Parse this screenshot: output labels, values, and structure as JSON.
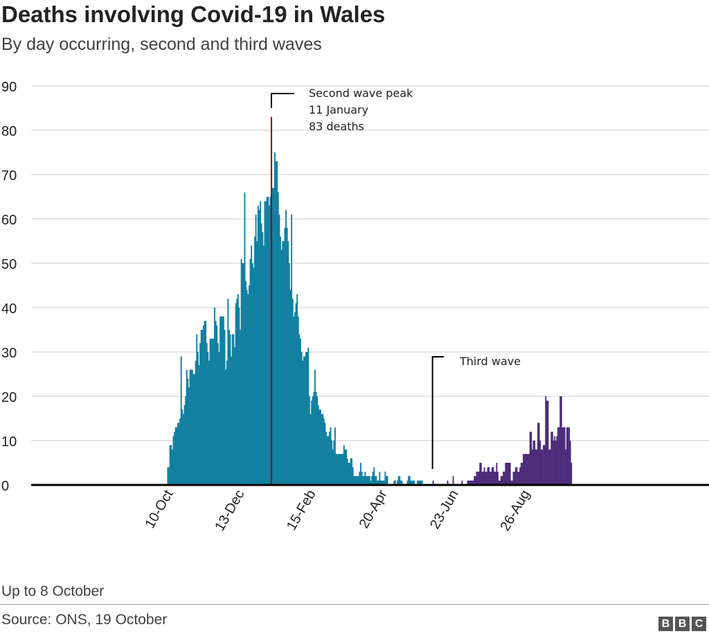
{
  "chart_data": {
    "type": "bar",
    "title": "Deaths involving Covid-19 in Wales",
    "subtitle": "By day occurring, second and third waves",
    "xlabel": "",
    "ylabel": "",
    "ylim": [
      0,
      90
    ],
    "yticks": [
      0,
      10,
      20,
      30,
      40,
      50,
      60,
      70,
      80,
      90
    ],
    "xlim": [
      "2020-06-10",
      "2022-02-08"
    ],
    "xticks": [
      {
        "date": "2020-10-10",
        "label": "10-Oct"
      },
      {
        "date": "2020-12-13",
        "label": "13-Dec"
      },
      {
        "date": "2021-02-15",
        "label": "15-Feb"
      },
      {
        "date": "2021-04-20",
        "label": "20-Apr"
      },
      {
        "date": "2021-06-23",
        "label": "23-Jun"
      },
      {
        "date": "2021-08-26",
        "label": "26-Aug"
      }
    ],
    "grid": true,
    "frequency": "daily",
    "series": [
      {
        "color": "#1380A1",
        "start": "2020-10-10",
        "end": "2021-06-04",
        "values": [
          4,
          4,
          9,
          9,
          8,
          11,
          12,
          13,
          13,
          14,
          14,
          15,
          29,
          17,
          16,
          18,
          20,
          26,
          24,
          22,
          26,
          26,
          26,
          25,
          25,
          28,
          34,
          30,
          27,
          32,
          35,
          35,
          36,
          37,
          37,
          32,
          30,
          28,
          33,
          33,
          33,
          33,
          40,
          37,
          36,
          32,
          30,
          38,
          38,
          38,
          38,
          35,
          26,
          28,
          42,
          35,
          34,
          29,
          34,
          34,
          31,
          41,
          42,
          43,
          40,
          35,
          51,
          50,
          50,
          66,
          46,
          44,
          43,
          45,
          51,
          54,
          50,
          49,
          56,
          61,
          55,
          63,
          62,
          64,
          59,
          57,
          54,
          64,
          64,
          65,
          65,
          63,
          65,
          83,
          67,
          67,
          75,
          73,
          73,
          66,
          61,
          56,
          53,
          55,
          55,
          58,
          62,
          58,
          55,
          50,
          44,
          61,
          42,
          38,
          39,
          41,
          43,
          38,
          34,
          33,
          30,
          28,
          29,
          29,
          30,
          30,
          31,
          20,
          16,
          19,
          20,
          21,
          26,
          21,
          20,
          18,
          17,
          17,
          16,
          16,
          15,
          14,
          12,
          11,
          11,
          12,
          13,
          10,
          8,
          10,
          13,
          7,
          7,
          7,
          7,
          7,
          7,
          7,
          9,
          8,
          8,
          6,
          5,
          5,
          6,
          6,
          4,
          2,
          2,
          2,
          2,
          2,
          3,
          5,
          3,
          2,
          2,
          3,
          2,
          2,
          2,
          2,
          1,
          2,
          3,
          4,
          2,
          2,
          1,
          1,
          3,
          1,
          1,
          1,
          1,
          3,
          2,
          2,
          0,
          0,
          0,
          0,
          0,
          1,
          1,
          0,
          1,
          2,
          2,
          1,
          1,
          0,
          0,
          0,
          0,
          1,
          2,
          2,
          1,
          1,
          1,
          1,
          0,
          0,
          1,
          1,
          1,
          1,
          1,
          0,
          0,
          0,
          0,
          0,
          0,
          0,
          0,
          0,
          0
        ]
      },
      {
        "color": "#4D2C7A",
        "start": "2021-06-05",
        "end": "2021-10-08",
        "values": [
          1,
          0,
          0,
          0,
          0,
          0,
          0,
          0,
          0,
          0,
          0,
          0,
          0,
          1,
          0,
          0,
          0,
          0,
          2,
          0,
          0,
          0,
          0,
          0,
          0,
          0,
          1,
          0,
          0,
          0,
          0,
          1,
          1,
          1,
          1,
          1,
          1,
          2,
          2,
          3,
          3,
          3,
          5,
          5,
          3,
          3,
          4,
          3,
          3,
          4,
          4,
          3,
          3,
          4,
          4,
          3,
          3,
          5,
          3,
          1,
          1,
          2,
          2,
          3,
          3,
          5,
          5,
          5,
          5,
          5,
          1,
          1,
          3,
          3,
          4,
          4,
          3,
          3,
          4,
          5,
          5,
          7,
          7,
          7,
          7,
          7,
          7,
          12,
          12,
          8,
          10,
          10,
          8,
          8,
          14,
          14,
          10,
          8,
          8,
          9,
          9,
          20,
          19,
          19,
          8,
          8,
          12,
          12,
          10,
          11,
          10,
          11,
          13,
          13,
          20,
          20,
          13,
          13,
          13,
          8,
          13,
          13,
          13,
          10,
          5
        ]
      }
    ],
    "annotations": [
      {
        "date": "2021-01-11",
        "value": 83,
        "color": "#990000",
        "lines": [
          "Second wave peak",
          "11 January",
          "83 deaths"
        ]
      },
      {
        "date": "2021-06-05",
        "lines": [
          "Third wave"
        ]
      }
    ]
  },
  "footer": {
    "note": "Up to 8 October",
    "source": "Source: ONS, 19 October",
    "logo": [
      "B",
      "B",
      "C"
    ]
  }
}
